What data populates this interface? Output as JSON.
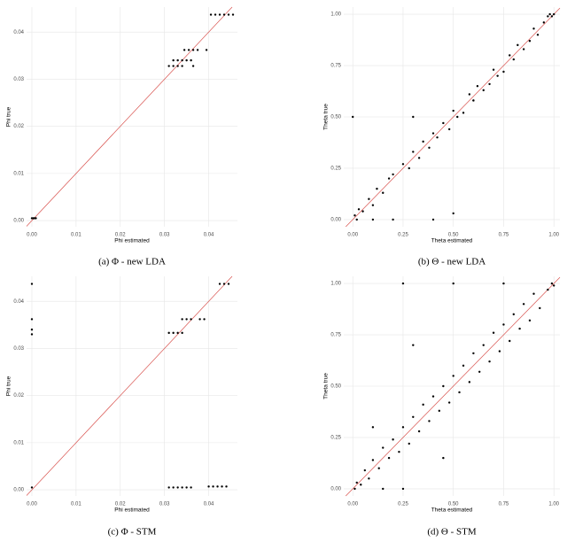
{
  "chart_data": [
    {
      "type": "scatter",
      "caption": "(a) Φ - new LDA",
      "xlabel": "Phi estimated",
      "ylabel": "Phi true",
      "x": [
        0.0,
        0.0003,
        0.0006,
        0.0009,
        0.0405,
        0.0415,
        0.0425,
        0.0435,
        0.0445,
        0.0455,
        0.0345,
        0.0355,
        0.0365,
        0.0375,
        0.0395,
        0.032,
        0.033,
        0.034,
        0.035,
        0.036,
        0.031,
        0.032,
        0.033,
        0.034,
        0.0365
      ],
      "y": [
        0.0005,
        0.0005,
        0.0005,
        0.0005,
        0.0437,
        0.0437,
        0.0437,
        0.0437,
        0.0437,
        0.0437,
        0.0362,
        0.0362,
        0.0362,
        0.0362,
        0.0362,
        0.034,
        0.034,
        0.034,
        0.034,
        0.034,
        0.0328,
        0.0328,
        0.0328,
        0.0328,
        0.0328
      ],
      "xlim": [
        -0.0012,
        0.0465
      ],
      "ylim": [
        -0.0013,
        0.0453
      ],
      "xticks": [
        {
          "value": 0,
          "label": "0.00"
        },
        0.01,
        0.02,
        0.03,
        0.04
      ],
      "yticks": [
        {
          "value": 0,
          "label": "0.00"
        },
        0.01,
        0.02,
        0.03,
        0.04
      ],
      "grid": true,
      "color": "#000000",
      "line_color": "#d9534f"
    },
    {
      "type": "scatter",
      "caption": "(b) Θ - new LDA",
      "xlabel": "Theta estimated",
      "ylabel": "Theta true",
      "x": [
        0.01,
        0.02,
        0.03,
        0.05,
        0.08,
        0.1,
        0.12,
        0.15,
        0.18,
        0.2,
        0.25,
        0.28,
        0.3,
        0.33,
        0.35,
        0.38,
        0.4,
        0.42,
        0.45,
        0.48,
        0.5,
        0.52,
        0.55,
        0.58,
        0.6,
        0.62,
        0.65,
        0.68,
        0.7,
        0.72,
        0.75,
        0.78,
        0.8,
        0.82,
        0.85,
        0.88,
        0.9,
        0.92,
        0.95,
        0.97,
        0.98,
        0.99,
        1.0,
        0.0,
        0.1,
        0.2,
        0.3,
        0.5,
        0.4,
        0.6
      ],
      "y": [
        0.02,
        0.0,
        0.05,
        0.04,
        0.1,
        0.07,
        0.15,
        0.13,
        0.2,
        0.22,
        0.27,
        0.25,
        0.33,
        0.3,
        0.38,
        0.35,
        0.42,
        0.4,
        0.47,
        0.44,
        0.53,
        0.5,
        0.52,
        0.61,
        0.58,
        0.65,
        0.63,
        0.66,
        0.73,
        0.7,
        0.72,
        0.8,
        0.78,
        0.85,
        0.83,
        0.87,
        0.93,
        0.9,
        0.96,
        0.99,
        1.0,
        0.99,
        1.0,
        0.5,
        0.0,
        0.0,
        0.5,
        0.03,
        0.0,
        0.58
      ],
      "xlim": [
        -0.045,
        1.03
      ],
      "ylim": [
        -0.035,
        1.035
      ],
      "xticks": [
        {
          "value": 0,
          "label": "0.00"
        },
        0.25,
        {
          "value": 0.5,
          "label": "0.50"
        },
        0.75,
        {
          "value": 1,
          "label": "1.00"
        }
      ],
      "yticks": [
        {
          "value": 0,
          "label": "0.00"
        },
        0.25,
        {
          "value": 0.5,
          "label": "0.50"
        },
        0.75,
        {
          "value": 1,
          "label": "1.00"
        }
      ],
      "grid": true,
      "color": "#000000",
      "line_color": "#d9534f"
    },
    {
      "type": "scatter",
      "caption": "(c) Φ - STM",
      "xlabel": "Phi estimated",
      "ylabel": "Phi true",
      "x": [
        0.0,
        0.0,
        0.0,
        0.0,
        0.0,
        0.031,
        0.032,
        0.033,
        0.034,
        0.035,
        0.036,
        0.04,
        0.041,
        0.042,
        0.043,
        0.044,
        0.031,
        0.032,
        0.033,
        0.034,
        0.034,
        0.035,
        0.036,
        0.038,
        0.039,
        0.0425,
        0.0435,
        0.0445
      ],
      "y": [
        0.0437,
        0.0362,
        0.034,
        0.033,
        0.0005,
        0.0005,
        0.0005,
        0.0005,
        0.0005,
        0.0005,
        0.0005,
        0.0007,
        0.0007,
        0.0007,
        0.0007,
        0.0007,
        0.0333,
        0.0333,
        0.0333,
        0.0333,
        0.0362,
        0.0362,
        0.0362,
        0.0362,
        0.0362,
        0.0437,
        0.0437,
        0.0437
      ],
      "xlim": [
        -0.0012,
        0.0465
      ],
      "ylim": [
        -0.0013,
        0.0453
      ],
      "xticks": [
        {
          "value": 0,
          "label": "0.00"
        },
        0.01,
        0.02,
        0.03,
        0.04
      ],
      "yticks": [
        {
          "value": 0,
          "label": "0.00"
        },
        0.01,
        0.02,
        0.03,
        0.04
      ],
      "grid": true,
      "color": "#000000",
      "line_color": "#d9534f"
    },
    {
      "type": "scatter",
      "caption": "(d) Θ - STM",
      "xlabel": "Theta estimated",
      "ylabel": "Theta true",
      "x": [
        0.01,
        0.02,
        0.04,
        0.06,
        0.08,
        0.1,
        0.13,
        0.15,
        0.18,
        0.2,
        0.23,
        0.25,
        0.28,
        0.3,
        0.33,
        0.35,
        0.38,
        0.4,
        0.43,
        0.45,
        0.48,
        0.5,
        0.53,
        0.55,
        0.58,
        0.6,
        0.63,
        0.65,
        0.68,
        0.7,
        0.73,
        0.75,
        0.78,
        0.8,
        0.83,
        0.85,
        0.88,
        0.9,
        0.93,
        0.97,
        0.99,
        1.0,
        0.25,
        0.5,
        0.75,
        0.15,
        0.25,
        0.1,
        0.3,
        0.45
      ],
      "y": [
        0.0,
        0.03,
        0.02,
        0.09,
        0.05,
        0.14,
        0.1,
        0.2,
        0.15,
        0.24,
        0.18,
        0.3,
        0.22,
        0.35,
        0.28,
        0.41,
        0.33,
        0.45,
        0.38,
        0.5,
        0.42,
        0.55,
        0.47,
        0.6,
        0.52,
        0.66,
        0.57,
        0.7,
        0.62,
        0.76,
        0.67,
        0.8,
        0.72,
        0.85,
        0.78,
        0.9,
        0.82,
        0.95,
        0.88,
        0.97,
        1.0,
        0.99,
        1.0,
        1.0,
        1.0,
        0.0,
        0.0,
        0.3,
        0.7,
        0.15
      ],
      "xlim": [
        -0.045,
        1.03
      ],
      "ylim": [
        -0.035,
        1.035
      ],
      "xticks": [
        {
          "value": 0,
          "label": "0.00"
        },
        0.25,
        {
          "value": 0.5,
          "label": "0.50"
        },
        0.75,
        {
          "value": 1,
          "label": "1.00"
        }
      ],
      "yticks": [
        {
          "value": 0,
          "label": "0.00"
        },
        0.25,
        {
          "value": 0.5,
          "label": "0.50"
        },
        0.75,
        {
          "value": 1,
          "label": "1.00"
        }
      ],
      "grid": true,
      "color": "#000000",
      "line_color": "#d9534f"
    }
  ]
}
